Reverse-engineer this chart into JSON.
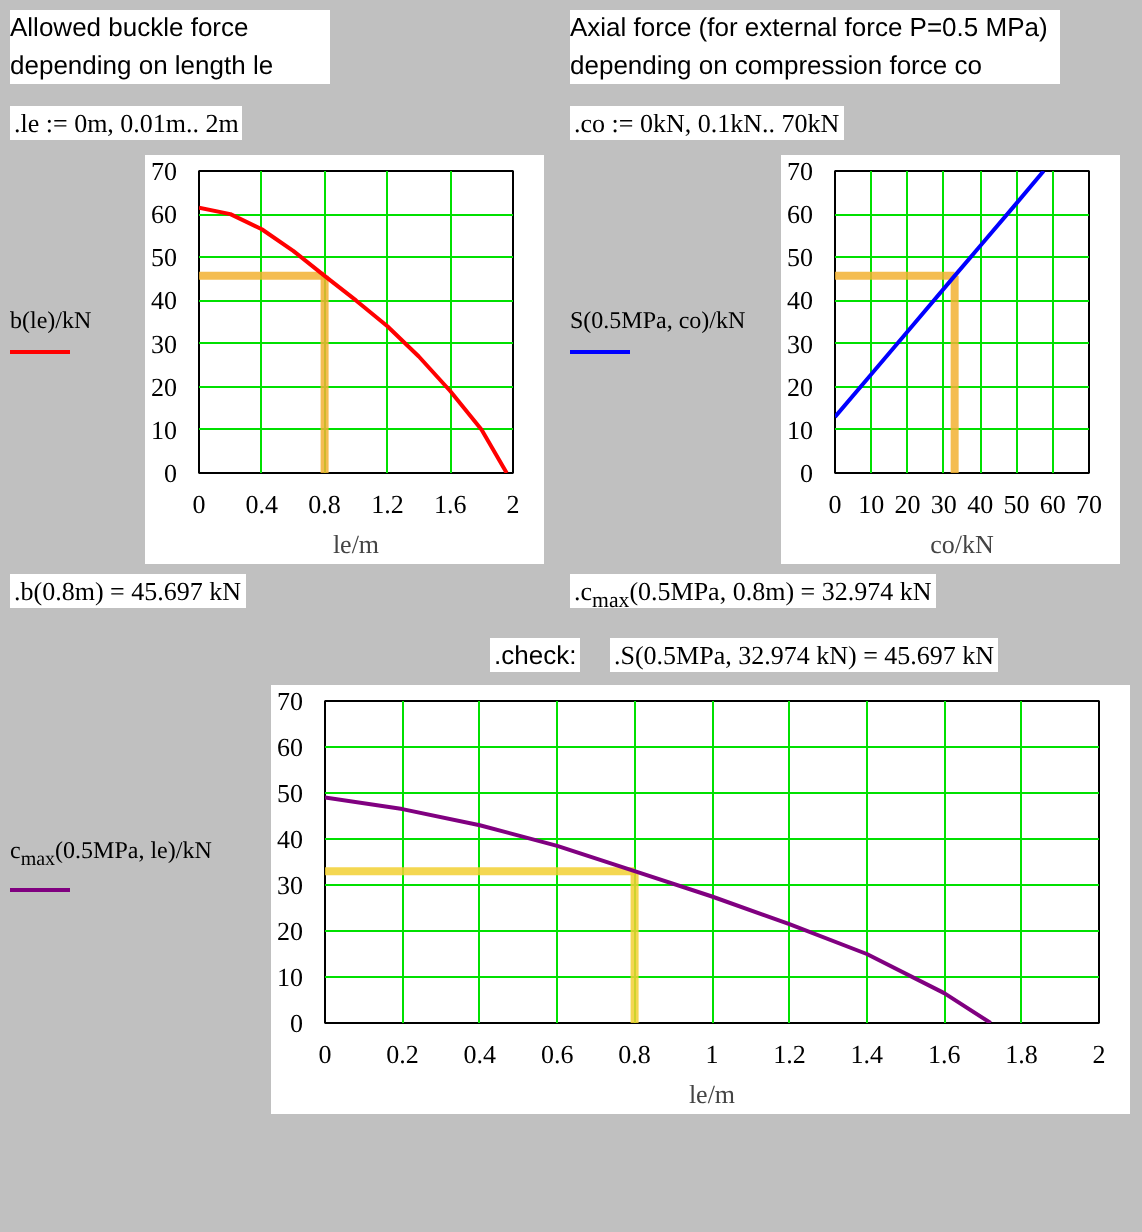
{
  "chart_data": [
    {
      "type": "line",
      "title": "Allowed buckle force depending on length le",
      "xlabel": "le/m",
      "ylabel": "b(le)/kN",
      "annotations": [
        ".le := 0m, 0.01m.. 2m",
        ".b(0.8m) = 45.697 kN"
      ],
      "series": [
        {
          "color": "#ff0000",
          "x": [
            0,
            0.2,
            0.4,
            0.6,
            0.8,
            1.0,
            1.2,
            1.4,
            1.6,
            1.8,
            1.96
          ],
          "values": [
            61.5,
            60,
            56.5,
            51.5,
            45.7,
            40,
            34,
            27,
            19,
            10,
            0
          ]
        }
      ],
      "xlim": [
        0,
        2
      ],
      "xticks": [
        0,
        0.4,
        0.8,
        1.2,
        1.6,
        2
      ],
      "ylim": [
        0,
        70
      ],
      "yticks": [
        0,
        10,
        20,
        30,
        40,
        50,
        60,
        70
      ],
      "grid": true,
      "ref_lines": [
        {
          "axis": "x",
          "value": 0.8,
          "color": "#f2b233"
        },
        {
          "axis": "y",
          "value": 45.697,
          "color": "#f2b233"
        }
      ]
    },
    {
      "type": "line",
      "title": "Axial force (for external force P=0.5 MPa) depending on compression force co",
      "xlabel": "co/kN",
      "ylabel": "S(0.5MPa, co)/kN",
      "annotations": [
        ".co := 0kN, 0.1kN.. 70kN",
        ".c$_{max}$(0.5MPa, 0.8m) = 32.974 kN",
        ".check:",
        ".S(0.5MPa, 32.974 kN) = 45.697 kN"
      ],
      "series": [
        {
          "color": "#0000ff",
          "x": [
            0,
            10,
            20,
            32.974,
            40,
            50,
            57.5
          ],
          "values": [
            13,
            22.9,
            32.8,
            45.7,
            52.6,
            62.5,
            70
          ]
        }
      ],
      "xlim": [
        0,
        70
      ],
      "xticks": [
        0,
        10,
        20,
        30,
        40,
        50,
        60,
        70
      ],
      "ylim": [
        0,
        70
      ],
      "yticks": [
        0,
        10,
        20,
        30,
        40,
        50,
        60,
        70
      ],
      "grid": true,
      "ref_lines": [
        {
          "axis": "x",
          "value": 32.974,
          "color": "#f2b233"
        },
        {
          "axis": "y",
          "value": 45.697,
          "color": "#f2b233"
        }
      ]
    },
    {
      "type": "line",
      "xlabel": "le/m",
      "ylabel": "c$_{max}$(0.5MPa, le)/kN",
      "series": [
        {
          "color": "#800080",
          "x": [
            0,
            0.2,
            0.4,
            0.6,
            0.8,
            1.0,
            1.2,
            1.4,
            1.6,
            1.72
          ],
          "values": [
            49,
            46.5,
            43,
            38.5,
            33,
            27.5,
            21.5,
            15,
            6.5,
            0
          ]
        }
      ],
      "xlim": [
        0,
        2
      ],
      "xticks": [
        0,
        0.2,
        0.4,
        0.6,
        0.8,
        1,
        1.2,
        1.4,
        1.6,
        1.8,
        2
      ],
      "ylim": [
        0,
        70
      ],
      "yticks": [
        0,
        10,
        20,
        30,
        40,
        50,
        60,
        70
      ],
      "grid": true,
      "ref_lines": [
        {
          "axis": "x",
          "value": 0.8,
          "color": "#f2d033"
        },
        {
          "axis": "y",
          "value": 32.974,
          "color": "#f2d033"
        }
      ]
    }
  ]
}
